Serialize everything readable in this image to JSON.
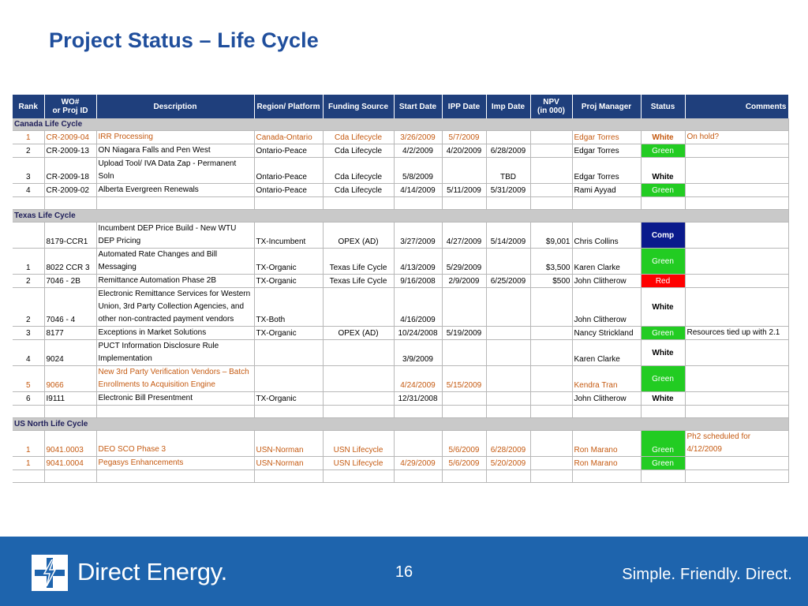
{
  "title": "Project Status – Life Cycle",
  "headers": [
    "Rank",
    "WO#\nor Proj ID",
    "Description",
    "Region/ Platform",
    "Funding Source",
    "Start Date",
    "IPP Date",
    "Imp Date",
    "NPV\n(in 000)",
    "Proj Manager",
    "Status",
    "Comments"
  ],
  "rows": [
    {
      "type": "section",
      "label": "Canada Life Cycle"
    },
    {
      "type": "data",
      "orange": true,
      "cells": [
        "1",
        "CR-2009-04",
        "IRR Processing",
        "Canada-Ontario",
        "Cda Lifecycle",
        "3/26/2009",
        "5/7/2009",
        "",
        "",
        "Edgar Torres",
        "White",
        "On hold?"
      ]
    },
    {
      "type": "data",
      "cells": [
        "2",
        "CR-2009-13",
        "ON Niagara Falls and Pen West",
        "Ontario-Peace",
        "Cda Lifecycle",
        "4/2/2009",
        "4/20/2009",
        "6/28/2009",
        "",
        "Edgar Torres",
        "Green",
        ""
      ]
    },
    {
      "type": "data",
      "cells": [
        "3",
        "CR-2009-18",
        "Upload Tool/ IVA Data Zap - Permanent Soln",
        "Ontario-Peace",
        "Cda Lifecycle",
        "5/8/2009",
        "",
        "TBD",
        "",
        "Edgar Torres",
        "White",
        ""
      ]
    },
    {
      "type": "data",
      "cells": [
        "4",
        "CR-2009-02",
        "Alberta Evergreen Renewals",
        "Ontario-Peace",
        "Cda Lifecycle",
        "4/14/2009",
        "5/11/2009",
        "5/31/2009",
        "",
        "Rami Ayyad",
        "Green",
        ""
      ]
    },
    {
      "type": "blank"
    },
    {
      "type": "section",
      "label": "Texas Life Cycle"
    },
    {
      "type": "data",
      "tall": true,
      "cells": [
        "",
        "8179-CCR1",
        "Incumbent DEP Price Build - New WTU DEP Pricing",
        "TX-Incumbent",
        "OPEX (AD)",
        "3/27/2009",
        "4/27/2009",
        "5/14/2009",
        "$9,001",
        "Chris Collins",
        "Comp",
        ""
      ]
    },
    {
      "type": "data",
      "tall": true,
      "cells": [
        "1",
        "8022 CCR 3",
        "Automated Rate Changes and Bill Messaging",
        "TX-Organic",
        "Texas Life Cycle",
        "4/13/2009",
        "5/29/2009",
        "",
        "$3,500",
        "Karen Clarke",
        "Green",
        ""
      ]
    },
    {
      "type": "data",
      "cells": [
        "2",
        "7046 - 2B",
        "Remittance Automation Phase 2B",
        "TX-Organic",
        "Texas Life Cycle",
        "9/16/2008",
        "2/9/2009",
        "6/25/2009",
        "$500",
        "John Clitherow",
        "Red",
        ""
      ]
    },
    {
      "type": "data",
      "tall3": true,
      "cells": [
        "2",
        "7046 - 4",
        "Electronic Remittance Services for Western Union, 3rd Party Collection Agencies, and other non-contracted payment vendors",
        "TX-Both",
        "",
        "4/16/2009",
        "",
        "",
        "",
        "John Clitherow",
        "White",
        ""
      ]
    },
    {
      "type": "data",
      "cells": [
        "3",
        "8177",
        "Exceptions in Market Solutions",
        "TX-Organic",
        "OPEX (AD)",
        "10/24/2008",
        "5/19/2009",
        "",
        "",
        "Nancy Strickland",
        "Green",
        "Resources tied up with 2.1"
      ]
    },
    {
      "type": "data",
      "tall": true,
      "cells": [
        "4",
        "9024",
        "PUCT Information Disclosure Rule Implementation",
        "",
        "",
        "3/9/2009",
        "",
        "",
        "",
        "Karen Clarke",
        "White",
        ""
      ]
    },
    {
      "type": "data",
      "tall": true,
      "orange": true,
      "cells": [
        "5",
        "9066",
        "New 3rd Party Verification Vendors – Batch Enrollments to Acquisition Engine",
        "",
        "",
        "4/24/2009",
        "5/15/2009",
        "",
        "",
        "Kendra Tran",
        "Green",
        ""
      ]
    },
    {
      "type": "data",
      "cells": [
        "6",
        "I9111",
        "Electronic Bill Presentment",
        "TX-Organic",
        "",
        "12/31/2008",
        "",
        "",
        "",
        "John Clitherow",
        "White",
        ""
      ]
    },
    {
      "type": "blank"
    },
    {
      "type": "section",
      "label": "US North Life Cycle"
    },
    {
      "type": "data",
      "orange": true,
      "cells": [
        "1",
        "9041.0003",
        "DEO SCO Phase 3",
        "USN-Norman",
        "USN Lifecycle",
        "",
        "5/6/2009",
        "6/28/2009",
        "",
        "Ron Marano",
        "Green",
        "Ph2 scheduled for 4/12/2009"
      ]
    },
    {
      "type": "data",
      "orange": true,
      "cells": [
        "1",
        "9041.0004",
        "Pegasys Enhancements",
        "USN-Norman",
        "USN Lifecycle",
        "4/29/2009",
        "5/6/2009",
        "5/20/2009",
        "",
        "Ron Marano",
        "Green",
        ""
      ]
    },
    {
      "type": "blank"
    }
  ],
  "footer": {
    "brand": "Direct Energy.",
    "page_number": "16",
    "tagline": "Simple.  Friendly.  Direct."
  },
  "colors": {
    "header_bg": "#1f3f7c",
    "title": "#1f4e9c",
    "footer_bg": "#1e64ad",
    "green": "#22cc22",
    "red": "#ff0000",
    "comp": "#0a1a8c",
    "orange_text": "#c55a11"
  }
}
